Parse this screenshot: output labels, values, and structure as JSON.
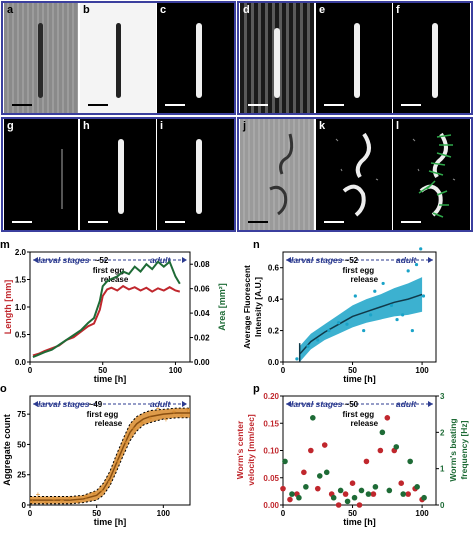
{
  "images": [
    {
      "label": "a",
      "kind": "brightfield"
    },
    {
      "label": "b",
      "kind": "binary"
    },
    {
      "label": "c",
      "kind": "mask"
    },
    {
      "label": "d",
      "kind": "fluorescence-stripes"
    },
    {
      "label": "e",
      "kind": "mask"
    },
    {
      "label": "f",
      "kind": "mask"
    },
    {
      "label": "g",
      "kind": "dark-speckle"
    },
    {
      "label": "h",
      "kind": "mask"
    },
    {
      "label": "i",
      "kind": "mask"
    },
    {
      "label": "j",
      "kind": "brightfield-two-worms"
    },
    {
      "label": "k",
      "kind": "two-worm-outline"
    },
    {
      "label": "l",
      "kind": "two-worm-outline-green"
    }
  ],
  "colors": {
    "frame": "#3b3f9e",
    "red": "#c0272d",
    "green": "#1e6b36",
    "cyan": "#1aa3c8",
    "orange": "#d88a2a",
    "navy": "#2b3a8f"
  },
  "panels": {
    "m": {
      "label": "m",
      "stages_left": "larval stages",
      "stages_right": "adult",
      "tilde": "~52",
      "egg1": "first egg",
      "egg2": "release",
      "ylabel_left": "Length [mm]",
      "ylabel_right": "Area [mm²]",
      "xlabel": "time [h]",
      "xticks": [
        "0",
        "50",
        "100"
      ],
      "yticks_left": [
        "0.0",
        "0.5",
        "1.0",
        "1.5",
        "2.0"
      ],
      "yticks_right": [
        "0.00",
        "0.02",
        "0.04",
        "0.06",
        "0.08"
      ]
    },
    "n": {
      "label": "n",
      "stages_left": "larval stages",
      "stages_right": "adult",
      "tilde": "~52",
      "egg1": "first egg",
      "egg2": "release",
      "ylabel1": "Average Fluorescent",
      "ylabel2": "Intensity [A.U.]",
      "xlabel": "time [h]",
      "xticks": [
        "0",
        "50",
        "100"
      ],
      "yticks": [
        "0.0",
        "0.2",
        "0.4",
        "0.6"
      ]
    },
    "o": {
      "label": "o",
      "stages_left": "larval stages",
      "stages_right": "adult",
      "tilde": "~49",
      "egg1": "first egg",
      "egg2": "release",
      "ylabel": "Aggregate count",
      "xlabel": "time [h]",
      "xticks": [
        "0",
        "50",
        "100"
      ],
      "yticks": [
        "0",
        "25",
        "50",
        "75"
      ]
    },
    "p": {
      "label": "p",
      "stages_left": "larval stages",
      "stages_right": "adult",
      "tilde": "~50",
      "egg1": "first egg",
      "egg2": "release",
      "ylabel_left1": "Worm's center",
      "ylabel_left2": "velocity [mm/sec]",
      "ylabel_right1": "Worm's beating",
      "ylabel_right2": "frequency [Hz]",
      "xlabel": "time [h]",
      "xticks": [
        "0",
        "50",
        "100"
      ],
      "yticks_left": [
        "0.00",
        "0.05",
        "0.10",
        "0.15",
        "0.20"
      ],
      "yticks_right": [
        "0",
        "1",
        "2",
        "3"
      ]
    }
  },
  "chart_data": [
    {
      "panel": "m",
      "type": "line",
      "xlim": [
        0,
        110
      ],
      "series": [
        {
          "axis": "left",
          "x": [
            2,
            6,
            10,
            15,
            20,
            25,
            30,
            35,
            40,
            44,
            48,
            50,
            53,
            56,
            60,
            64,
            68,
            72,
            76,
            80,
            84,
            88,
            92,
            96,
            100,
            103
          ],
          "values": [
            0.12,
            0.15,
            0.2,
            0.25,
            0.3,
            0.4,
            0.45,
            0.55,
            0.65,
            0.7,
            0.95,
            1.2,
            1.32,
            1.35,
            1.3,
            1.38,
            1.32,
            1.36,
            1.3,
            1.35,
            1.28,
            1.34,
            1.3,
            1.36,
            1.3,
            1.28
          ]
        },
        {
          "axis": "right",
          "x": [
            2,
            6,
            10,
            15,
            20,
            25,
            30,
            35,
            40,
            44,
            48,
            50,
            53,
            56,
            60,
            64,
            68,
            72,
            76,
            80,
            84,
            88,
            92,
            96,
            100,
            103
          ],
          "values": [
            0.004,
            0.006,
            0.008,
            0.01,
            0.014,
            0.018,
            0.022,
            0.026,
            0.032,
            0.036,
            0.05,
            0.062,
            0.066,
            0.068,
            0.07,
            0.074,
            0.072,
            0.078,
            0.074,
            0.08,
            0.076,
            0.082,
            0.078,
            0.082,
            0.07,
            0.064
          ]
        }
      ],
      "ylim_left": [
        0,
        2.0
      ],
      "ylim_right": [
        0,
        0.09
      ]
    },
    {
      "panel": "n",
      "type": "scatter",
      "xlim": [
        0,
        110
      ],
      "ylim": [
        0,
        0.7
      ],
      "fit": {
        "x": [
          12,
          20,
          30,
          40,
          50,
          60,
          70,
          80,
          90,
          100
        ],
        "y": [
          0.05,
          0.13,
          0.19,
          0.24,
          0.29,
          0.32,
          0.35,
          0.38,
          0.4,
          0.43
        ],
        "lo": [
          0.0,
          0.08,
          0.14,
          0.18,
          0.22,
          0.25,
          0.27,
          0.29,
          0.3,
          0.32
        ],
        "hi": [
          0.1,
          0.18,
          0.24,
          0.3,
          0.36,
          0.4,
          0.43,
          0.47,
          0.5,
          0.54
        ]
      },
      "points": {
        "x": [
          10,
          18,
          25,
          33,
          40,
          46,
          52,
          58,
          63,
          66,
          72,
          78,
          82,
          86,
          90,
          93,
          96,
          99,
          101
        ],
        "y": [
          0.02,
          0.1,
          0.14,
          0.2,
          0.25,
          0.24,
          0.42,
          0.2,
          0.3,
          0.45,
          0.5,
          0.36,
          0.27,
          0.3,
          0.58,
          0.2,
          0.62,
          0.72,
          0.42
        ]
      }
    },
    {
      "panel": "o",
      "type": "scatter",
      "xlim": [
        0,
        120
      ],
      "ylim": [
        0,
        90
      ],
      "fit": {
        "x": [
          0,
          10,
          20,
          30,
          40,
          50,
          55,
          60,
          65,
          70,
          75,
          80,
          85,
          90,
          100,
          110,
          120
        ],
        "y": [
          4,
          4,
          4,
          4,
          5,
          8,
          13,
          22,
          35,
          48,
          60,
          67,
          71,
          73,
          75,
          76,
          76
        ],
        "lo": [
          1,
          1,
          1,
          1,
          2,
          4,
          8,
          16,
          28,
          41,
          53,
          61,
          66,
          68,
          71,
          72,
          72
        ],
        "hi": [
          7,
          7,
          7,
          7,
          8,
          12,
          18,
          28,
          42,
          55,
          67,
          73,
          76,
          78,
          79,
          80,
          80
        ]
      },
      "points": {
        "x": [
          2,
          6,
          12,
          18,
          24,
          30,
          36,
          42,
          48,
          54,
          60,
          66,
          72,
          78,
          84,
          90,
          96,
          102,
          108,
          114,
          118
        ],
        "y": [
          3,
          9,
          2,
          5,
          4,
          6,
          3,
          7,
          10,
          12,
          20,
          36,
          52,
          63,
          68,
          72,
          80,
          71,
          77,
          74,
          79
        ]
      }
    },
    {
      "panel": "p",
      "type": "scatter",
      "xlim": [
        0,
        110
      ],
      "ylim_left": [
        0,
        0.2
      ],
      "ylim_right": [
        0,
        3
      ],
      "series": [
        {
          "axis": "left",
          "x": [
            0,
            5,
            10,
            15,
            20,
            25,
            30,
            35,
            40,
            45,
            50,
            55,
            60,
            65,
            70,
            75,
            80,
            85,
            90,
            95,
            100
          ],
          "values": [
            0.03,
            0.01,
            0.02,
            0.06,
            0.1,
            0.03,
            0.11,
            0.02,
            0.0,
            0.02,
            0.04,
            0.0,
            0.08,
            0.02,
            0.1,
            0.16,
            0.1,
            0.04,
            0.02,
            0.03,
            0.01
          ]
        },
        {
          "axis": "right",
          "x": [
            0,
            5,
            10,
            15,
            20,
            25,
            30,
            35,
            40,
            45,
            50,
            55,
            60,
            65,
            70,
            75,
            80,
            85,
            90,
            95,
            100
          ],
          "values": [
            1.2,
            0.3,
            0.2,
            0.5,
            2.4,
            0.8,
            0.9,
            0.2,
            0.4,
            0.1,
            0.2,
            0.4,
            0.3,
            0.5,
            2.0,
            0.4,
            1.6,
            0.3,
            1.2,
            0.5,
            0.2
          ]
        }
      ]
    }
  ]
}
